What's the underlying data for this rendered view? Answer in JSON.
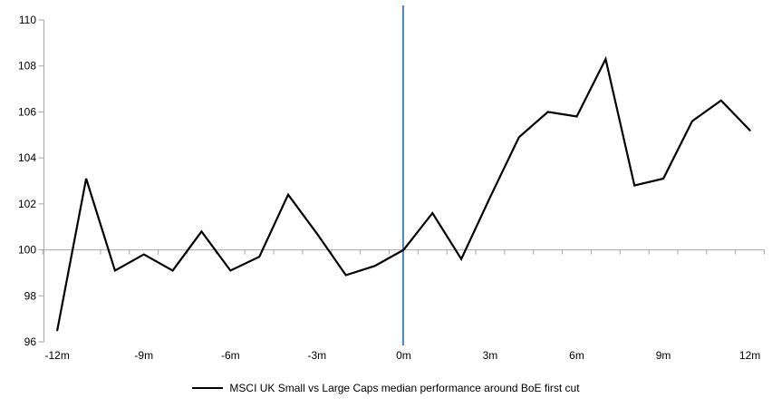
{
  "legend": {
    "label": "MSCI UK Small vs Large Caps median performance around BoE first cut"
  },
  "chart_data": {
    "type": "line",
    "title": "",
    "x": [
      -12,
      -11,
      -10,
      -9,
      -8,
      -7,
      -6,
      -5,
      -4,
      -3,
      -2,
      -1,
      0,
      1,
      2,
      3,
      4,
      5,
      6,
      7,
      8,
      9,
      10,
      11,
      12
    ],
    "x_tick_values": [
      -12,
      -9,
      -6,
      -3,
      0,
      3,
      6,
      9,
      12
    ],
    "x_tick_labels": [
      "-12m",
      "-9m",
      "-6m",
      "-3m",
      "0m",
      "3m",
      "6m",
      "9m",
      "12m"
    ],
    "y_ticks": [
      96,
      98,
      100,
      102,
      104,
      106,
      108,
      110
    ],
    "ylim": [
      96,
      110
    ],
    "baseline_value": 100,
    "event_line_x": 0,
    "grid": false,
    "legend_position": "bottom",
    "series": [
      {
        "name": "MSCI UK Small vs Large Caps median performance around BoE first cut",
        "color": "#000000",
        "values": [
          96.5,
          103.1,
          99.1,
          99.8,
          99.1,
          100.8,
          99.1,
          99.7,
          102.4,
          100.7,
          98.9,
          99.3,
          100.0,
          101.6,
          99.6,
          102.3,
          104.9,
          106.0,
          105.8,
          108.3,
          102.8,
          103.1,
          105.6,
          106.5,
          105.2
        ]
      }
    ],
    "colors": {
      "series_line": "#000000",
      "event_line": "#4F81BD",
      "axis": "#A6A6A6",
      "baseline": "#A6A6A6",
      "text": "#000000"
    }
  }
}
